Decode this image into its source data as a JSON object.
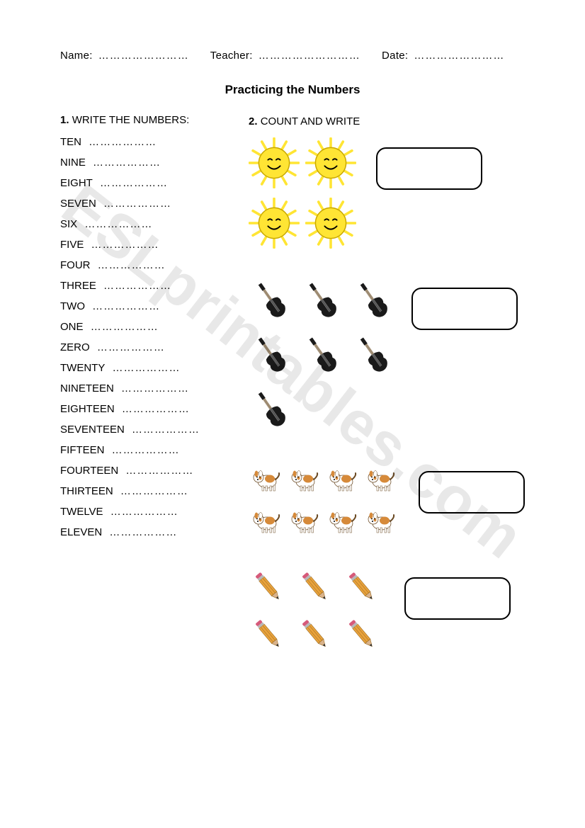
{
  "header": {
    "name_label": "Name:",
    "name_dots": "……………………",
    "teacher_label": "Teacher:",
    "teacher_dots": "………………………",
    "date_label": "Date:",
    "date_dots": "……………………"
  },
  "title": "Practicing the Numbers",
  "section1": {
    "num": "1.",
    "label": "WRITE THE NUMBERS:",
    "items": [
      {
        "word": "TEN",
        "dots": "………………"
      },
      {
        "word": "NINE",
        "dots": "………………"
      },
      {
        "word": "EIGHT",
        "dots": "………………"
      },
      {
        "word": "SEVEN",
        "dots": "………………"
      },
      {
        "word": "SIX",
        "dots": "………………"
      },
      {
        "word": "FIVE",
        "dots": "………………"
      },
      {
        "word": "FOUR",
        "dots": "………………"
      },
      {
        "word": "THREE",
        "dots": "………………"
      },
      {
        "word": "TWO",
        "dots": "………………"
      },
      {
        "word": "ONE",
        "dots": "………………"
      },
      {
        "word": "ZERO",
        "dots": "………………"
      },
      {
        "word": "TWENTY",
        "dots": "………………"
      },
      {
        "word": "NINETEEN",
        "dots": "………………"
      },
      {
        "word": "EIGHTEEN",
        "dots": "………………"
      },
      {
        "word": "SEVENTEEN",
        "dots": "………………"
      },
      {
        "word": "FIFTEEN",
        "dots": "………………"
      },
      {
        "word": "FOURTEEN",
        "dots": "………………"
      },
      {
        "word": "THIRTEEN",
        "dots": "………………"
      },
      {
        "word": "TWELVE",
        "dots": "………………"
      },
      {
        "word": "ELEVEN",
        "dots": "………………"
      }
    ]
  },
  "section2": {
    "num": "2.",
    "label": "COUNT AND WRITE",
    "groups": [
      {
        "icon": "sun",
        "count": 4,
        "rows": 2,
        "cols": 2,
        "size": 72,
        "colors": {
          "fill": "#ffe534",
          "stroke": "#c9a800",
          "face": "#000"
        }
      },
      {
        "icon": "guitar",
        "count": 7,
        "rows": 3,
        "cols": 3,
        "size": 64,
        "colors": {
          "body": "#1a1a1a",
          "neck": "#8b6b3f",
          "strings": "#bbb"
        }
      },
      {
        "icon": "dog",
        "count": 8,
        "rows": 2,
        "cols": 4,
        "size": 50,
        "colors": {
          "body": "#ffffff",
          "patch": "#d68a3a",
          "outline": "#6b4a24"
        }
      },
      {
        "icon": "pencil",
        "count": 6,
        "rows": 2,
        "cols": 3,
        "size": 60,
        "colors": {
          "body": "#e8a23c",
          "tip": "#d9b38c",
          "lead": "#333",
          "eraser": "#d65a7a",
          "ferrule": "#b8b8b8"
        }
      }
    ]
  },
  "watermark": "ESLprintables.com",
  "answer_box": {
    "border": "#000000",
    "radius": 14,
    "w": 150,
    "h": 60
  }
}
